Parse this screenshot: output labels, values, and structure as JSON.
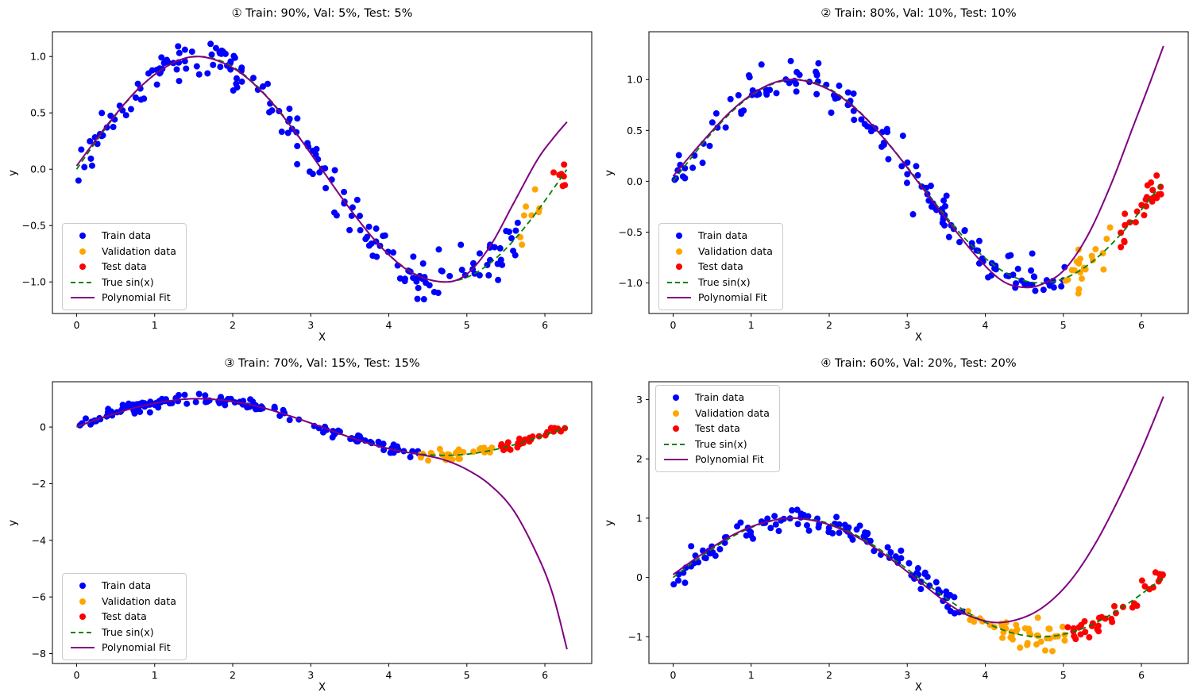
{
  "chart_data": {
    "type": "scatter",
    "description": "Four subplots of noisy sin(x) data split sequentially into train/validation/test sets with a polynomial fit curve",
    "xlabel": "X",
    "ylabel": "y",
    "x_ticks": [
      0,
      1,
      2,
      3,
      4,
      5,
      6
    ],
    "x_tick_labels": [
      "0",
      "1",
      "2",
      "3",
      "4",
      "5",
      "6"
    ],
    "xlim": [
      -0.31,
      6.6
    ],
    "x_data_range": [
      0,
      6.283
    ],
    "true_function": "sin(x)",
    "n_points": 200,
    "noise_std": 0.1,
    "grid": false,
    "colors": {
      "train": "#0000ff",
      "validation": "#ffa500",
      "test": "#ff0000",
      "true_sin": "#008000",
      "fit": "#800080"
    },
    "legend": {
      "entries": [
        {
          "label": "Train data",
          "marker": "dot",
          "color_key": "train"
        },
        {
          "label": "Validation data",
          "marker": "dot",
          "color_key": "validation"
        },
        {
          "label": "Test data",
          "marker": "dot",
          "color_key": "test"
        },
        {
          "label": "True sin(x)",
          "marker": "dashed-line",
          "color_key": "true_sin"
        },
        {
          "label": "Polynomial Fit",
          "marker": "line",
          "color_key": "fit"
        }
      ]
    },
    "subplots": [
      {
        "title": "① Train: 90%, Val: 5%, Test: 5%",
        "splits": {
          "train": 0.9,
          "val": 0.05,
          "test": 0.05
        },
        "split_x_boundaries": [
          5.655,
          5.969
        ],
        "y_ticks": [
          1.0,
          0.5,
          0.0,
          -0.5,
          -1.0
        ],
        "y_tick_labels": [
          "1.0",
          "0.5",
          "0.0",
          "−0.5",
          "−1.0"
        ],
        "ylim": [
          -1.28,
          1.22
        ],
        "legend_position": "lower left",
        "seed": 42,
        "fit_curve": {
          "x": [
            0,
            0.4,
            0.8,
            1.2,
            1.57,
            2.0,
            2.4,
            2.8,
            3.14,
            3.5,
            3.9,
            4.3,
            4.71,
            5.0,
            5.3,
            5.6,
            5.9,
            6.1,
            6.283
          ],
          "y": [
            0.03,
            0.4,
            0.72,
            0.93,
            1.0,
            0.9,
            0.67,
            0.33,
            0.0,
            -0.35,
            -0.69,
            -0.92,
            -1.0,
            -0.93,
            -0.68,
            -0.3,
            0.08,
            0.27,
            0.42
          ]
        }
      },
      {
        "title": "② Train: 80%, Val: 10%, Test: 10%",
        "splits": {
          "train": 0.8,
          "val": 0.1,
          "test": 0.1
        },
        "split_x_boundaries": [
          5.026,
          5.655
        ],
        "y_ticks": [
          1.0,
          0.5,
          0.0,
          -0.5,
          -1.0
        ],
        "y_tick_labels": [
          "1.0",
          "0.5",
          "0.0",
          "−0.5",
          "−1.0"
        ],
        "ylim": [
          -1.3,
          1.47
        ],
        "legend_position": "lower left",
        "seed": 7,
        "fit_curve": {
          "x": [
            0,
            0.4,
            0.8,
            1.2,
            1.57,
            2.0,
            2.4,
            2.8,
            3.14,
            3.5,
            3.9,
            4.2,
            4.45,
            4.7,
            5.0,
            5.3,
            5.6,
            5.9,
            6.1,
            6.283
          ],
          "y": [
            0.05,
            0.41,
            0.73,
            0.94,
            1.0,
            0.9,
            0.67,
            0.33,
            -0.01,
            -0.37,
            -0.75,
            -0.97,
            -1.04,
            -1.02,
            -0.88,
            -0.55,
            -0.05,
            0.55,
            0.95,
            1.33
          ]
        }
      },
      {
        "title": "③ Train: 70%, Val: 15%, Test: 15%",
        "splits": {
          "train": 0.7,
          "val": 0.15,
          "test": 0.15
        },
        "split_x_boundaries": [
          4.398,
          5.341
        ],
        "y_ticks": [
          0,
          -2,
          -4,
          -6,
          -8
        ],
        "y_tick_labels": [
          "0",
          "−2",
          "−4",
          "−6",
          "−8"
        ],
        "ylim": [
          -8.35,
          1.6
        ],
        "legend_position": "lower left",
        "seed": 13,
        "fit_curve": {
          "x": [
            0,
            0.4,
            0.8,
            1.2,
            1.57,
            2.0,
            2.4,
            2.8,
            3.14,
            3.5,
            3.9,
            4.2,
            4.4,
            4.7,
            5.0,
            5.3,
            5.6,
            5.9,
            6.1,
            6.283
          ],
          "y": [
            0.02,
            0.4,
            0.72,
            0.93,
            1.0,
            0.9,
            0.67,
            0.33,
            0.0,
            -0.36,
            -0.7,
            -0.88,
            -0.97,
            -1.15,
            -1.5,
            -2.05,
            -2.95,
            -4.5,
            -5.9,
            -7.85
          ]
        }
      },
      {
        "title": "④ Train: 60%, Val: 20%, Test: 20%",
        "splits": {
          "train": 0.6,
          "val": 0.2,
          "test": 0.2
        },
        "split_x_boundaries": [
          3.77,
          5.026
        ],
        "y_ticks": [
          3,
          2,
          1,
          0,
          -1
        ],
        "y_tick_labels": [
          "3",
          "2",
          "1",
          "0",
          "−1"
        ],
        "ylim": [
          -1.45,
          3.3
        ],
        "legend_position": "upper left",
        "seed": 99,
        "fit_curve": {
          "x": [
            0,
            0.4,
            0.8,
            1.2,
            1.57,
            2.0,
            2.4,
            2.8,
            3.14,
            3.5,
            3.8,
            4.15,
            4.5,
            4.8,
            5.1,
            5.4,
            5.7,
            6.0,
            6.283
          ],
          "y": [
            0.05,
            0.42,
            0.74,
            0.94,
            1.0,
            0.89,
            0.65,
            0.3,
            -0.05,
            -0.42,
            -0.65,
            -0.76,
            -0.67,
            -0.44,
            -0.04,
            0.55,
            1.3,
            2.15,
            3.05
          ]
        }
      }
    ]
  }
}
